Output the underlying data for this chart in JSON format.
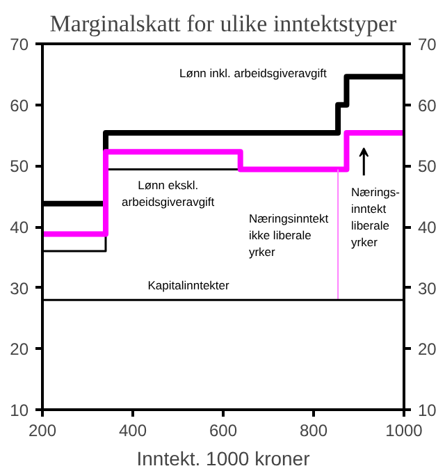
{
  "chart_data": {
    "type": "step",
    "title": "Marginalskatt for ulike inntektstyper",
    "xlabel": "Inntekt. 1000 kroner",
    "xlim": [
      200,
      1000
    ],
    "xticks": [
      200,
      400,
      600,
      800,
      1000
    ],
    "ylim": [
      10,
      70
    ],
    "yticks": [
      10,
      20,
      30,
      40,
      50,
      60,
      70
    ],
    "y2lim": [
      10,
      70
    ],
    "y2ticks": [
      10,
      20,
      30,
      40,
      50,
      60,
      70
    ],
    "grid": false,
    "series": [
      {
        "color": "#000000",
        "x": [
          200,
          340,
          854,
          873,
          1000
        ],
        "values": [
          43.8,
          55.4,
          60,
          64.6,
          64.6
        ]
      },
      {
        "color": "#000000",
        "x": [
          200,
          340,
          638
        ],
        "values": [
          36,
          49.4,
          49.4
        ]
      },
      {
        "color": "#ff00ff",
        "x": [
          200,
          340,
          638,
          873,
          1000
        ],
        "values": [
          38.8,
          52.3,
          49.4,
          55.4,
          55.4
        ]
      },
      {
        "color": "#ff80ff",
        "x": [
          854,
          854
        ],
        "values": [
          49.4,
          28
        ]
      },
      {
        "color": "#000000",
        "x": [
          200,
          1000
        ],
        "values": [
          28,
          28
        ]
      }
    ],
    "annotations": [
      "Lønn inkl. arbeidsgiveravgift",
      "Lønn ekskl.\narbeidsgiveravgift",
      "Næringsinntekt\nikke liberale\nyrker",
      "Nærings-\ninntekt\nliberale\nyrker",
      "Kapitalinntekter"
    ]
  }
}
